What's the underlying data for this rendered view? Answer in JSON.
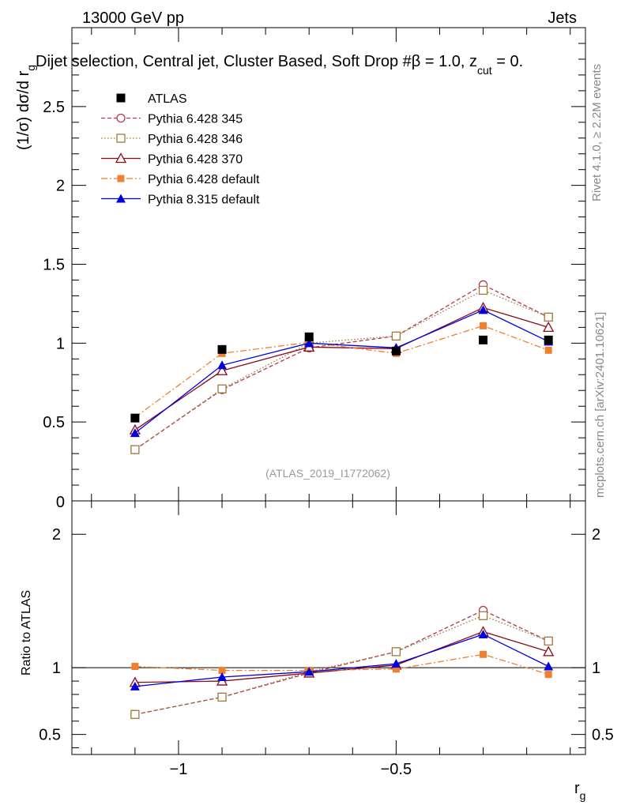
{
  "header": {
    "energy_label": "13000 GeV pp",
    "category_label": "Jets",
    "selection_title": "Dijet selection, Central jet, Cluster Based, Soft Drop #β = 1.0, z",
    "selection_sub": "cut",
    "selection_tail": " = 0."
  },
  "side_labels": {
    "rivet": "Rivet 4.1.0, ≥ 2.2M events",
    "mcplots": "mcplots.cern.ch [arXiv:2401.10621]"
  },
  "watermark": "(ATLAS_2019_I1772062)",
  "colors": {
    "atlas": "#000000",
    "py6_345": "#b03a48",
    "py6_346": "#a0783a",
    "py6_370": "#8b0a1a",
    "py6_default": "#f08030",
    "py8_default": "#0000dd"
  },
  "chart_data": [
    {
      "type": "line",
      "panel": "main",
      "ylabel_main": "(1/σ) dσ/d r",
      "ylabel_sub": "g",
      "ylim": [
        0,
        3.0
      ],
      "yticks": [
        0.5,
        1,
        1.5,
        2,
        2.5
      ],
      "ytick_labels": [
        "0.5",
        "1",
        "1.5",
        "2",
        "2.5"
      ],
      "bottom_tick_label": "0",
      "x": [
        -1.1,
        -0.9,
        -0.7,
        -0.5,
        -0.3,
        -0.15
      ],
      "series": [
        {
          "key": "atlas",
          "name": "ATLAS",
          "style": "data",
          "values": [
            0.525,
            0.96,
            1.04,
            0.95,
            1.02,
            1.02
          ]
        },
        {
          "key": "py6_345",
          "name": "Pythia 6.428 345",
          "style": "open-circle",
          "dash": "dashed",
          "values": [
            0.325,
            0.705,
            0.97,
            1.045,
            1.37,
            1.165
          ]
        },
        {
          "key": "py6_346",
          "name": "Pythia 6.428 346",
          "style": "open-square",
          "dash": "dotted",
          "values": [
            0.325,
            0.71,
            1.0,
            1.045,
            1.335,
            1.165
          ]
        },
        {
          "key": "py6_370",
          "name": "Pythia 6.428 370",
          "style": "open-triangle",
          "dash": "solid",
          "values": [
            0.45,
            0.825,
            0.975,
            0.965,
            1.225,
            1.1
          ]
        },
        {
          "key": "py6_default",
          "name": "Pythia 6.428 default",
          "style": "filled-square",
          "dash": "dashdot",
          "values": [
            0.53,
            0.935,
            1.005,
            0.935,
            1.11,
            0.955
          ]
        },
        {
          "key": "py8_default",
          "name": "Pythia 8.315 default",
          "style": "filled-triangle",
          "dash": "solid",
          "values": [
            0.43,
            0.86,
            1.0,
            0.97,
            1.21,
            1.01
          ]
        }
      ]
    },
    {
      "type": "line",
      "panel": "ratio",
      "ylabel": "Ratio to ATLAS",
      "ylim": [
        0.35,
        2.25
      ],
      "yticks": [
        0.5,
        1,
        2
      ],
      "ytick_labels": [
        "0.5",
        "1",
        "2"
      ],
      "xlabel_main": "r",
      "xlabel_sub": "g",
      "xlim": [
        -1.245,
        -0.065
      ],
      "xticks": [
        -1,
        -0.5
      ],
      "xtick_labels": [
        "−1",
        "−0.5"
      ],
      "x": [
        -1.1,
        -0.9,
        -0.7,
        -0.5,
        -0.3,
        -0.15
      ],
      "series": [
        {
          "key": "py6_345",
          "name": "Pythia 6.428 345",
          "values": [
            0.65,
            0.78,
            0.96,
            1.12,
            1.43,
            1.2
          ]
        },
        {
          "key": "py6_346",
          "name": "Pythia 6.428 346",
          "values": [
            0.65,
            0.78,
            0.97,
            1.12,
            1.39,
            1.2
          ]
        },
        {
          "key": "py6_370",
          "name": "Pythia 6.428 370",
          "values": [
            0.89,
            0.9,
            0.96,
            1.02,
            1.27,
            1.12
          ]
        },
        {
          "key": "py6_default",
          "name": "Pythia 6.428 default",
          "values": [
            1.01,
            0.98,
            0.98,
            0.99,
            1.1,
            0.95
          ]
        },
        {
          "key": "py8_default",
          "name": "Pythia 8.315 default",
          "values": [
            0.86,
            0.93,
            0.97,
            1.03,
            1.25,
            1.01
          ]
        }
      ]
    }
  ]
}
